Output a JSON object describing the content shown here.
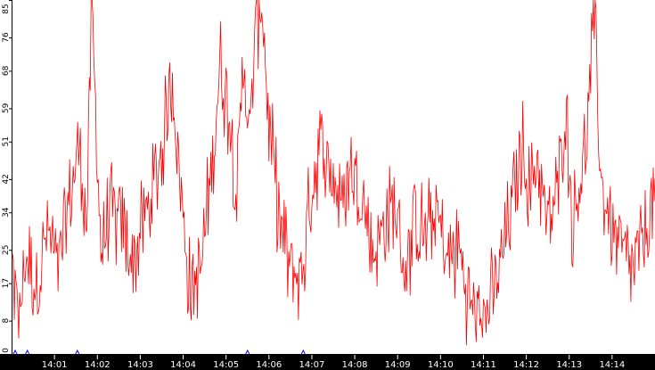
{
  "chart_data": {
    "type": "line",
    "title": "",
    "xlabel": "",
    "ylabel": "",
    "ylim": [
      0,
      85
    ],
    "yticks": [
      "0",
      "8",
      "17",
      "25",
      "34",
      "42",
      "51",
      "59",
      "68",
      "76",
      "85"
    ],
    "ytick_values": [
      0,
      8,
      17,
      25,
      34,
      42,
      51,
      59,
      68,
      76,
      85
    ],
    "xticks": [
      "14:01",
      "14:02",
      "14:03",
      "14:04",
      "14:05",
      "14:06",
      "14:07",
      "14:08",
      "14:09",
      "14:10",
      "14:11",
      "14:12",
      "14:13",
      "14:14"
    ],
    "x_range_minutes": [
      "14:00:00",
      "14:15:00"
    ],
    "grid": false,
    "legend": "none",
    "colors": {
      "series": "#ff0000",
      "axis": "#000000",
      "x_axis_band": "#000000",
      "x_tick_text": "#ffffff",
      "markers": "#0000ff"
    },
    "series": [
      {
        "envelope_points": [
          [
            "14:00:00",
            22
          ],
          [
            "14:00:10",
            8
          ],
          [
            "14:00:20",
            24
          ],
          [
            "14:00:35",
            16
          ],
          [
            "14:00:50",
            30
          ],
          [
            "14:01:05",
            20
          ],
          [
            "14:01:20",
            36
          ],
          [
            "14:01:35",
            50
          ],
          [
            "14:01:45",
            30
          ],
          [
            "14:01:52",
            84
          ],
          [
            "14:02:05",
            25
          ],
          [
            "14:02:20",
            34
          ],
          [
            "14:02:35",
            30
          ],
          [
            "14:02:50",
            22
          ],
          [
            "14:03:05",
            32
          ],
          [
            "14:03:20",
            40
          ],
          [
            "14:03:35",
            55
          ],
          [
            "14:03:45",
            66
          ],
          [
            "14:03:55",
            42
          ],
          [
            "14:04:10",
            15
          ],
          [
            "14:04:25",
            20
          ],
          [
            "14:04:40",
            45
          ],
          [
            "14:04:52",
            70
          ],
          [
            "14:05:05",
            58
          ],
          [
            "14:05:15",
            38
          ],
          [
            "14:05:25",
            72
          ],
          [
            "14:05:33",
            50
          ],
          [
            "14:05:40",
            76
          ],
          [
            "14:05:50",
            86
          ],
          [
            "14:06:00",
            55
          ],
          [
            "14:06:15",
            32
          ],
          [
            "14:06:30",
            20
          ],
          [
            "14:06:45",
            18
          ],
          [
            "14:07:00",
            40
          ],
          [
            "14:07:10",
            50
          ],
          [
            "14:07:25",
            45
          ],
          [
            "14:07:40",
            36
          ],
          [
            "14:07:55",
            44
          ],
          [
            "14:08:10",
            38
          ],
          [
            "14:08:25",
            24
          ],
          [
            "14:08:40",
            30
          ],
          [
            "14:08:55",
            36
          ],
          [
            "14:09:10",
            20
          ],
          [
            "14:09:25",
            32
          ],
          [
            "14:09:40",
            28
          ],
          [
            "14:09:55",
            34
          ],
          [
            "14:10:10",
            22
          ],
          [
            "14:10:25",
            26
          ],
          [
            "14:10:40",
            12
          ],
          [
            "14:10:55",
            8
          ],
          [
            "14:11:10",
            12
          ],
          [
            "14:11:25",
            22
          ],
          [
            "14:11:40",
            36
          ],
          [
            "14:11:55",
            50
          ],
          [
            "14:12:05",
            38
          ],
          [
            "14:12:15",
            48
          ],
          [
            "14:12:30",
            30
          ],
          [
            "14:12:45",
            40
          ],
          [
            "14:12:55",
            60
          ],
          [
            "14:13:05",
            30
          ],
          [
            "14:13:15",
            42
          ],
          [
            "14:13:25",
            52
          ],
          [
            "14:13:35",
            82
          ],
          [
            "14:13:45",
            40
          ],
          [
            "14:14:00",
            30
          ],
          [
            "14:14:15",
            24
          ],
          [
            "14:14:30",
            20
          ],
          [
            "14:14:45",
            28
          ],
          [
            "14:15:00",
            38
          ]
        ],
        "noise_amplitude": 10
      }
    ],
    "markers_x": [
      "14:00:05",
      "14:00:22",
      "14:01:32",
      "14:05:30",
      "14:06:48"
    ]
  }
}
